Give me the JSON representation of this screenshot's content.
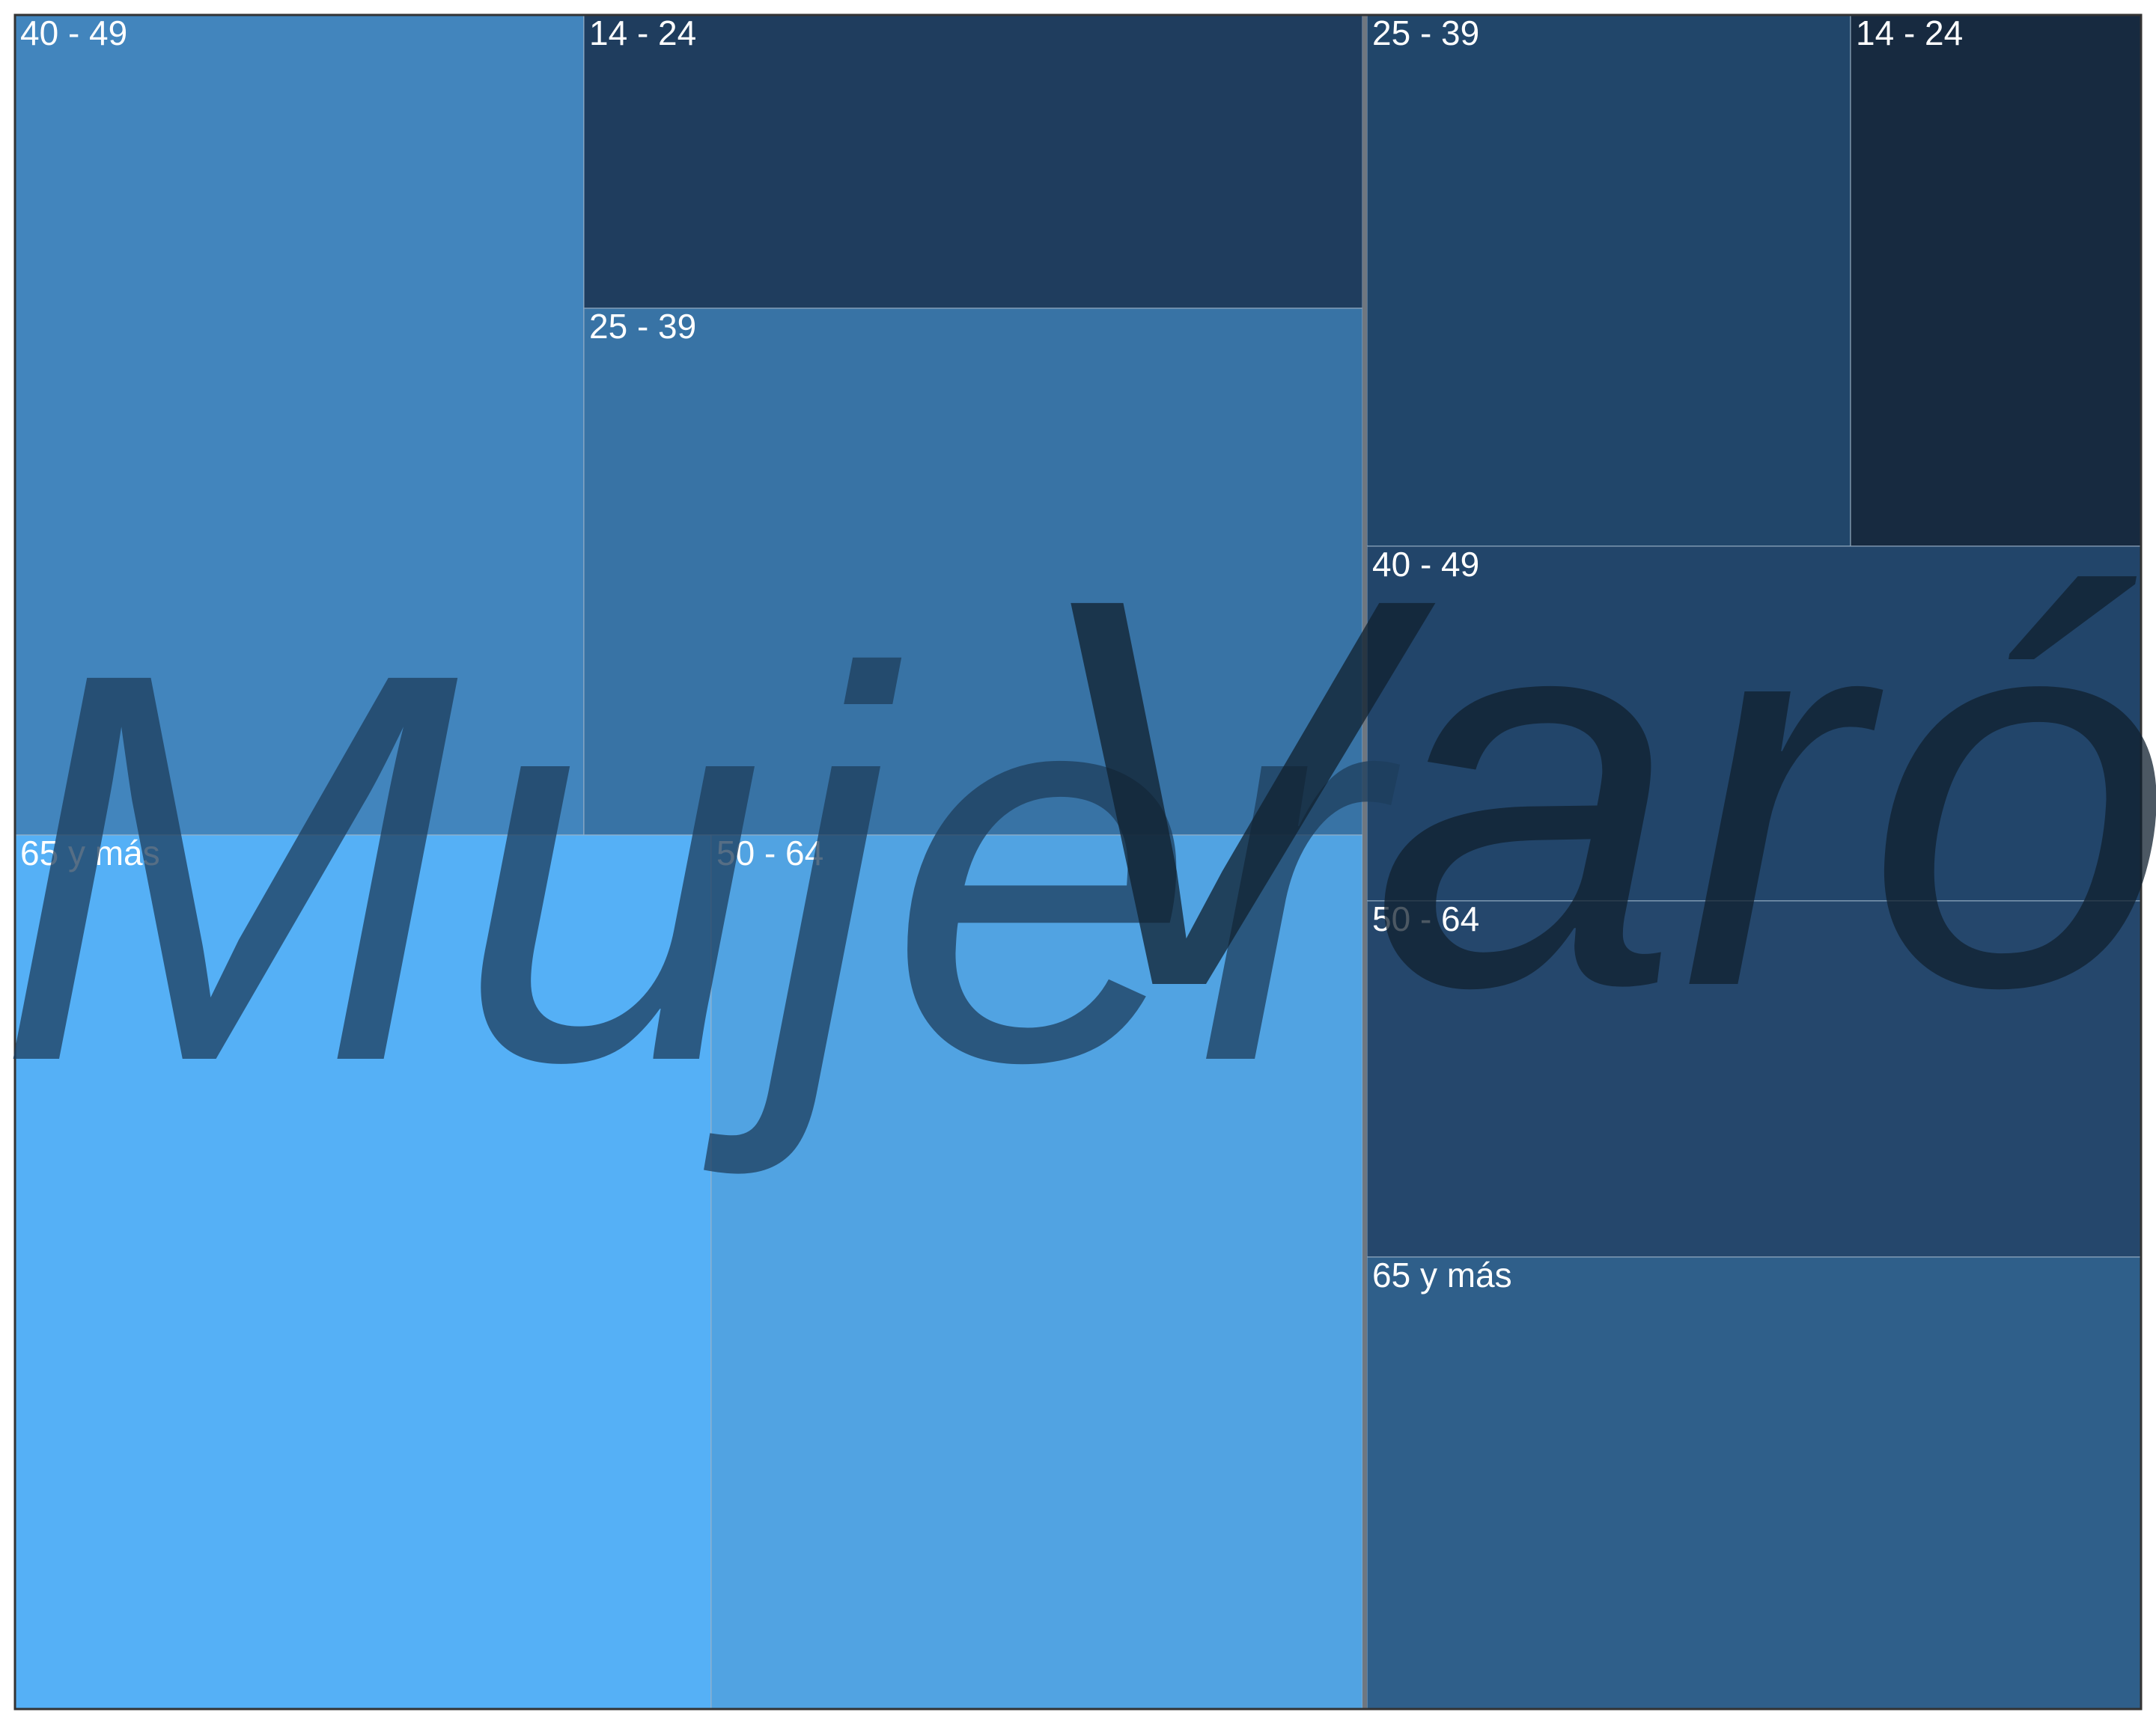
{
  "chart_data": {
    "type": "treemap",
    "groups": [
      {
        "name": "Mujer",
        "label_color": "#1e3d5c",
        "children": [
          {
            "name": "40 - 49",
            "value": 245,
            "color": "#4285bd"
          },
          {
            "name": "14 - 24",
            "value": 120,
            "color": "#1f3d5e"
          },
          {
            "name": "25 - 39",
            "value": 216,
            "color": "#3873a5"
          },
          {
            "name": "65 y más",
            "value": 370,
            "color": "#55b0f6"
          },
          {
            "name": "50 - 64",
            "value": 349,
            "color": "#51a3e2"
          }
        ]
      },
      {
        "name": "Varón",
        "label_color": "#10202f",
        "children": [
          {
            "name": "25 - 39",
            "value": 130,
            "color": "#21466a"
          },
          {
            "name": "14 - 24",
            "value": 78,
            "color": "#172a40"
          },
          {
            "name": "40 - 49",
            "value": 135,
            "color": "#22456a"
          },
          {
            "name": "50 - 64",
            "value": 141,
            "color": "#25476c"
          },
          {
            "name": "65 y más",
            "value": 179,
            "color": "#2f5f8a"
          }
        ]
      }
    ]
  }
}
